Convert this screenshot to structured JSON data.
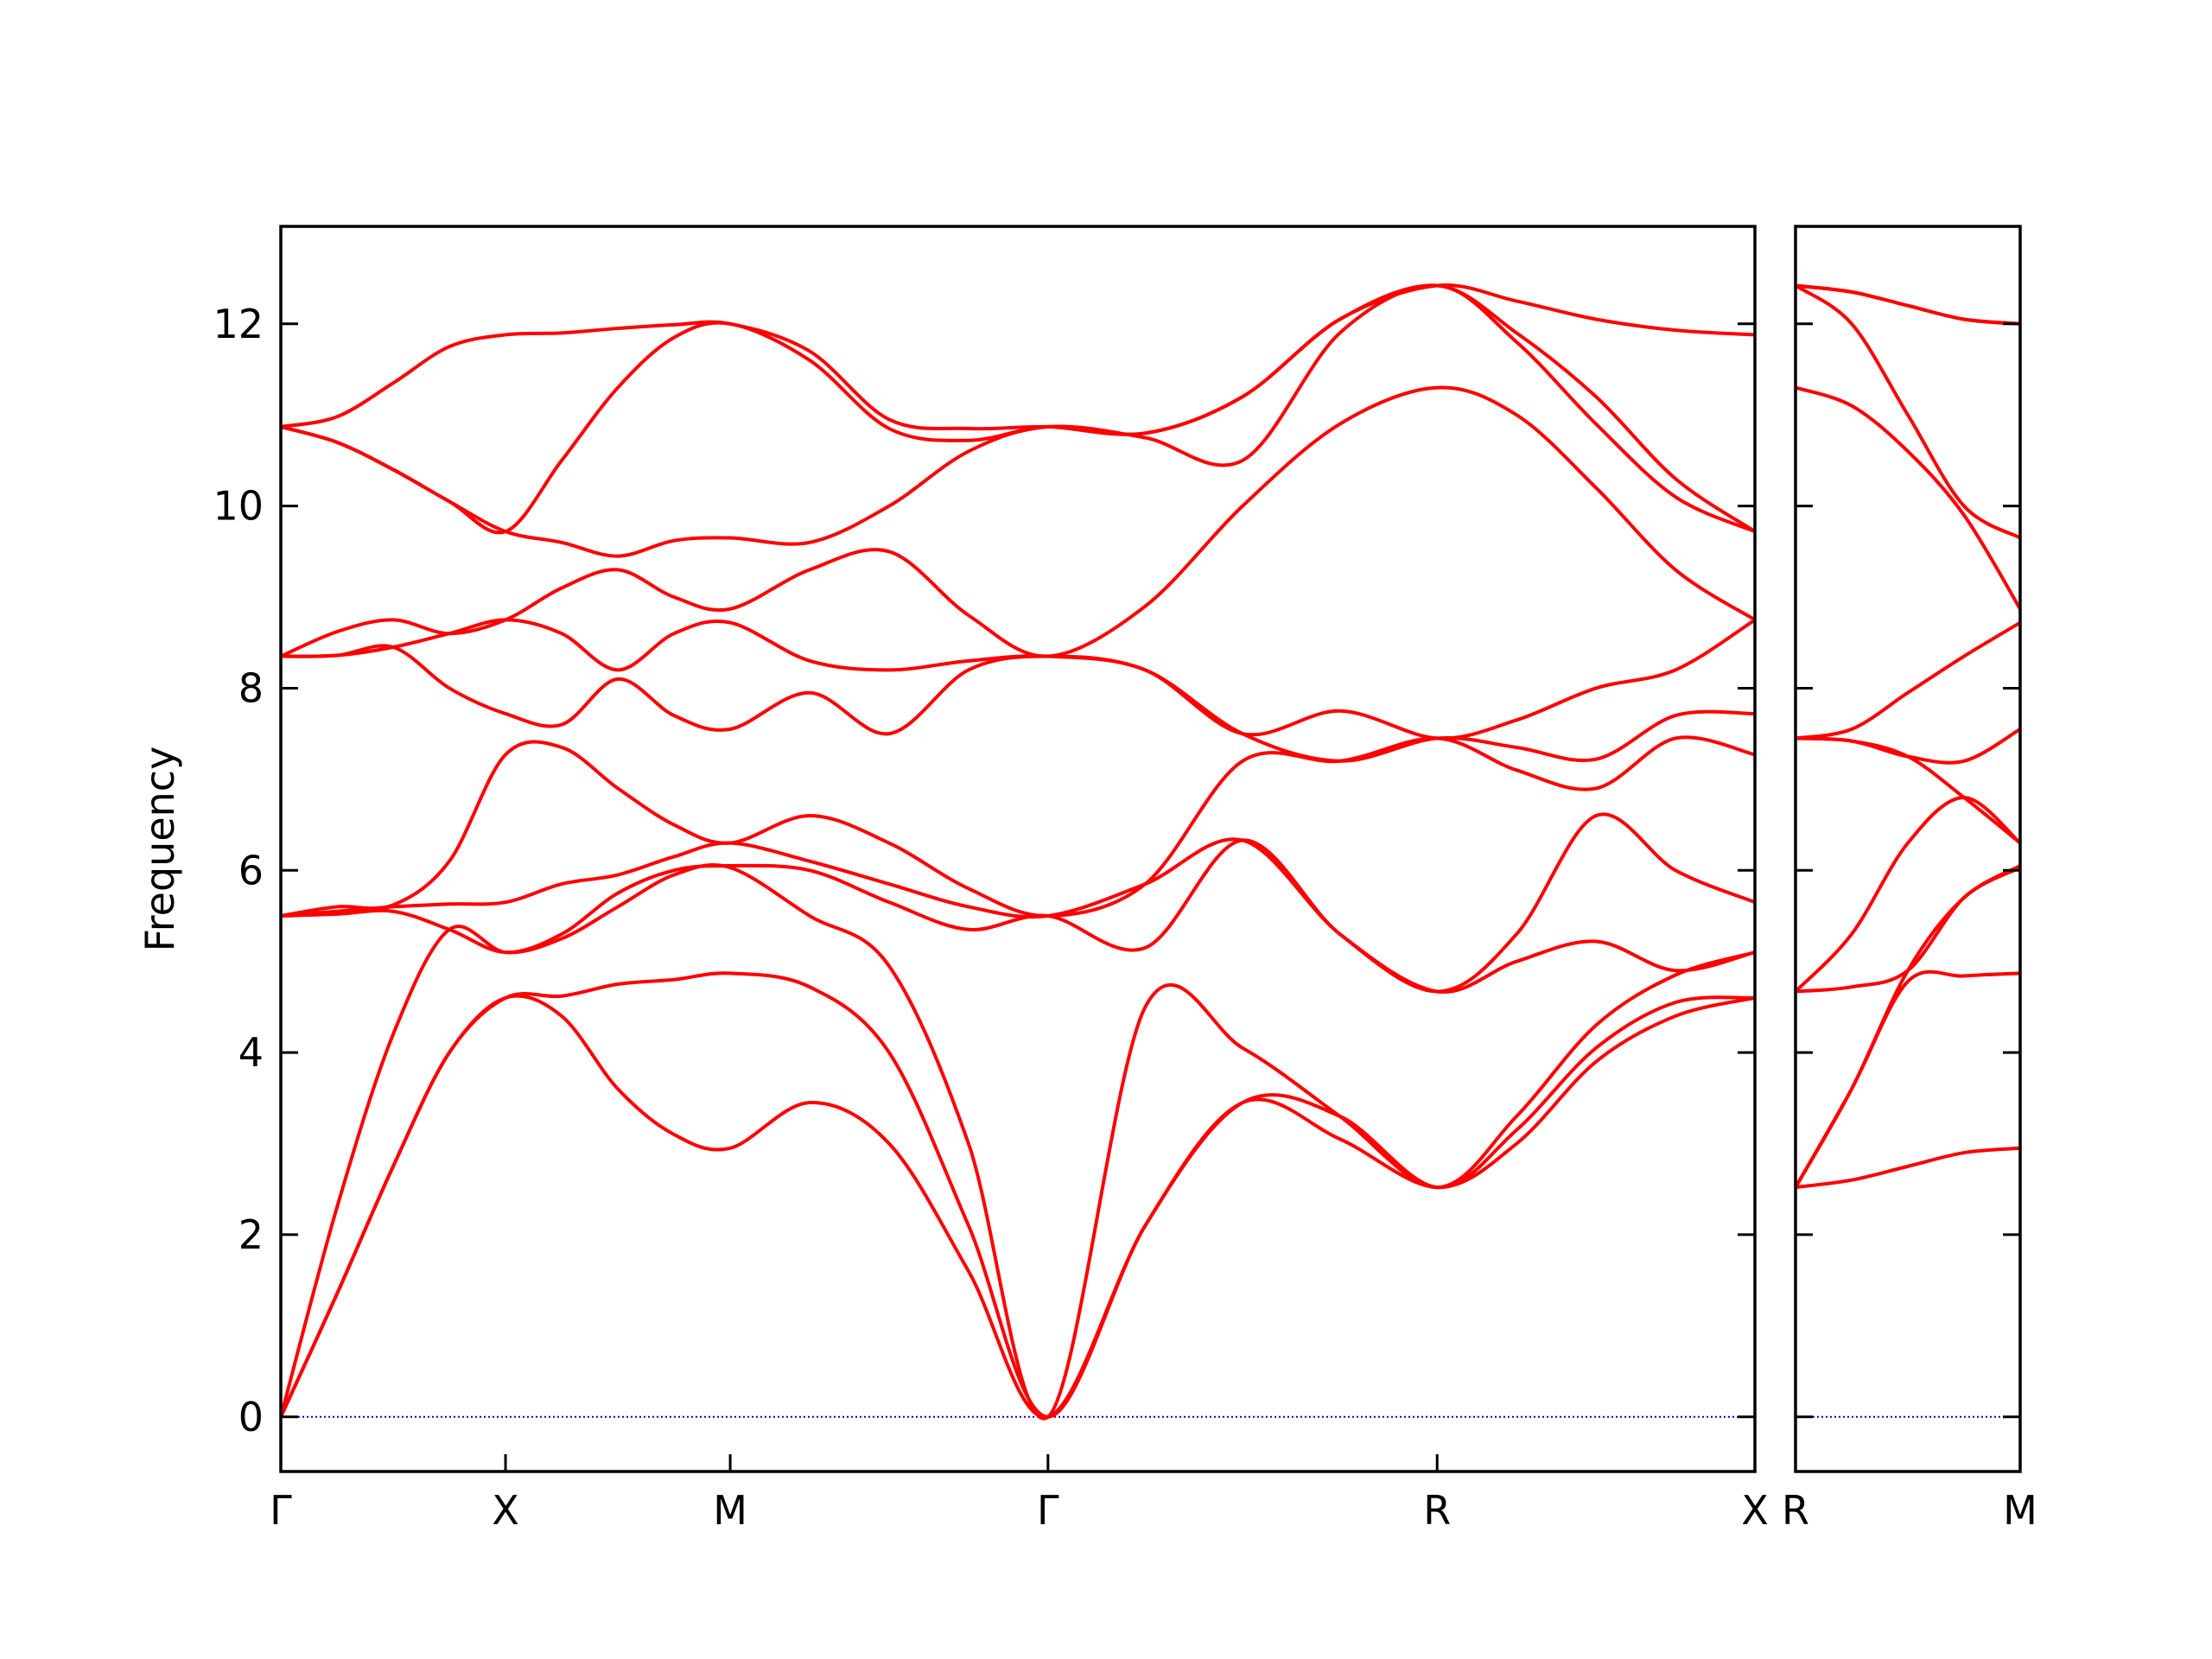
{
  "chart_data": [
    {
      "type": "line",
      "ylabel": "Frequency",
      "color": "#ff0000",
      "hline": 0,
      "hline_color": "#0000cc",
      "xlim": [
        0,
        3.2802
      ],
      "ylim": [
        -0.6,
        13.07
      ],
      "xticks": [
        {
          "value": 0,
          "label": "Γ"
        },
        {
          "value": 0.5,
          "label": "X"
        },
        {
          "value": 1.0,
          "label": "M"
        },
        {
          "value": 1.7071,
          "label": "Γ"
        },
        {
          "value": 2.5731,
          "label": "R"
        },
        {
          "value": 3.2802,
          "label": "X"
        }
      ],
      "yticks": [
        0,
        2,
        4,
        6,
        8,
        10,
        12
      ],
      "x": [
        0,
        0.125,
        0.25,
        0.375,
        0.5,
        0.625,
        0.75,
        0.875,
        1.0,
        1.1768,
        1.3536,
        1.5303,
        1.7071,
        1.9236,
        2.1401,
        2.3566,
        2.5731,
        2.7499,
        2.9267,
        3.1034,
        3.2802
      ],
      "series": [
        {
          "values": [
            0,
            1.35,
            2.75,
            4.0,
            4.6,
            4.4,
            3.6,
            3.1,
            2.95,
            3.45,
            3.0,
            1.6,
            0,
            2.1,
            3.45,
            3.05,
            2.52,
            3.0,
            3.9,
            4.4,
            4.6
          ]
        },
        {
          "values": [
            0,
            1.35,
            2.75,
            4.0,
            4.6,
            4.62,
            4.75,
            4.8,
            4.87,
            4.72,
            4.0,
            2.1,
            0,
            2.1,
            3.45,
            3.3,
            2.52,
            3.15,
            4.05,
            4.55,
            4.6
          ]
        },
        {
          "values": [
            0,
            2.3,
            4.2,
            5.35,
            5.1,
            5.25,
            5.6,
            5.95,
            6.03,
            5.5,
            4.95,
            3.0,
            0,
            4.5,
            4.05,
            3.3,
            2.52,
            3.3,
            4.3,
            4.85,
            5.1
          ]
        },
        {
          "values": [
            5.5,
            5.52,
            5.55,
            5.35,
            5.1,
            5.3,
            5.75,
            6.0,
            6.05,
            6.0,
            5.65,
            5.35,
            5.5,
            5.15,
            6.33,
            5.3,
            4.67,
            5.0,
            5.22,
            4.9,
            5.1
          ]
        },
        {
          "values": [
            5.5,
            5.55,
            5.6,
            5.63,
            5.65,
            5.85,
            5.95,
            6.15,
            6.3,
            6.1,
            5.85,
            5.6,
            5.5,
            5.85,
            6.33,
            5.3,
            4.67,
            5.3,
            6.6,
            6.0,
            5.65
          ]
        },
        {
          "values": [
            5.5,
            5.6,
            5.62,
            6.1,
            7.27,
            7.35,
            6.9,
            6.5,
            6.3,
            6.6,
            6.3,
            5.8,
            5.5,
            5.85,
            7.2,
            7.2,
            7.45,
            7.1,
            6.9,
            7.45,
            7.27
          ]
        },
        {
          "values": [
            8.35,
            8.36,
            8.45,
            8.0,
            7.72,
            7.6,
            8.1,
            7.7,
            7.55,
            7.95,
            7.5,
            8.2,
            8.35,
            8.2,
            7.5,
            7.2,
            7.45,
            7.35,
            7.22,
            7.7,
            7.72
          ]
        },
        {
          "values": [
            8.35,
            8.36,
            8.45,
            8.6,
            8.75,
            8.6,
            8.2,
            8.6,
            8.72,
            8.3,
            8.2,
            8.3,
            8.35,
            8.2,
            7.5,
            7.75,
            7.45,
            7.65,
            8.0,
            8.2,
            8.75
          ]
        },
        {
          "values": [
            8.35,
            8.62,
            8.75,
            8.6,
            8.75,
            9.1,
            9.3,
            9.0,
            8.87,
            9.3,
            9.5,
            8.8,
            8.35,
            8.9,
            10.0,
            10.9,
            11.3,
            11.0,
            10.2,
            9.3,
            8.75
          ]
        },
        {
          "values": [
            10.87,
            10.7,
            10.4,
            10.05,
            9.72,
            9.6,
            9.45,
            9.62,
            9.65,
            9.6,
            10.0,
            10.6,
            10.87,
            10.75,
            10.5,
            11.9,
            12.42,
            11.8,
            10.9,
            10.1,
            9.72
          ]
        },
        {
          "values": [
            10.87,
            10.7,
            10.4,
            10.05,
            9.72,
            10.5,
            11.3,
            11.85,
            12.0,
            11.6,
            10.85,
            10.72,
            10.87,
            10.8,
            11.2,
            12.05,
            12.42,
            11.9,
            11.2,
            10.3,
            9.72
          ]
        },
        {
          "values": [
            10.87,
            10.98,
            11.35,
            11.75,
            11.88,
            11.9,
            11.95,
            11.99,
            12.0,
            11.7,
            10.95,
            10.85,
            10.87,
            10.8,
            11.2,
            12.05,
            12.42,
            12.25,
            12.05,
            11.93,
            11.88
          ]
        }
      ]
    },
    {
      "type": "line",
      "color": "#ff0000",
      "hline": 0,
      "hline_color": "#0000cc",
      "xlim": [
        0,
        0.5
      ],
      "ylim": [
        -0.6,
        13.07
      ],
      "xticks": [
        {
          "value": 0,
          "label": "R"
        },
        {
          "value": 0.5,
          "label": "M"
        }
      ],
      "x": [
        0,
        0.125,
        0.25,
        0.375,
        0.5
      ],
      "series": [
        {
          "values": [
            2.52,
            2.6,
            2.75,
            2.9,
            2.95
          ]
        },
        {
          "values": [
            2.52,
            3.6,
            4.78,
            4.84,
            4.87
          ]
        },
        {
          "values": [
            2.52,
            3.6,
            4.9,
            5.7,
            6.03
          ]
        },
        {
          "values": [
            4.67,
            4.72,
            4.9,
            5.7,
            6.05
          ]
        },
        {
          "values": [
            4.67,
            5.3,
            6.3,
            6.8,
            6.3
          ]
        },
        {
          "values": [
            7.45,
            7.42,
            7.25,
            6.8,
            6.3
          ]
        },
        {
          "values": [
            7.45,
            7.42,
            7.25,
            7.2,
            7.55
          ]
        },
        {
          "values": [
            7.45,
            7.55,
            7.95,
            8.35,
            8.72
          ]
        },
        {
          "values": [
            11.3,
            11.1,
            10.6,
            9.9,
            8.87
          ]
        },
        {
          "values": [
            12.42,
            12.0,
            11.0,
            10.0,
            9.65
          ]
        },
        {
          "values": [
            12.42,
            12.35,
            12.2,
            12.05,
            12.0
          ]
        },
        {
          "values": [
            12.42,
            12.35,
            12.2,
            12.05,
            12.0
          ]
        }
      ]
    }
  ]
}
